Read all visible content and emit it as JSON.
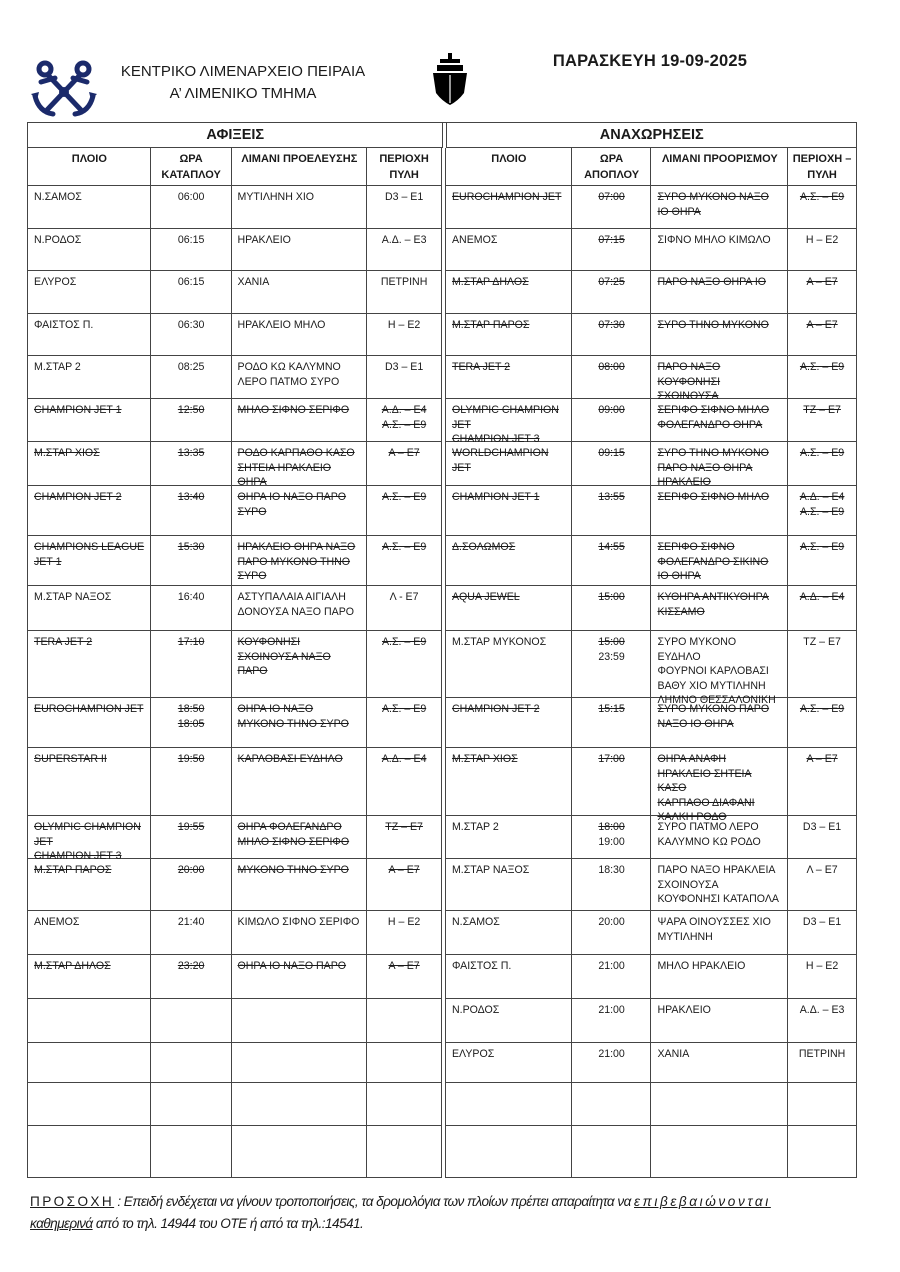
{
  "header": {
    "org_line1": "ΚΕΝΤΡΙΚΟ ΛΙΜΕΝΑΡΧΕΙΟ ΠΕΙΡΑΙΑ",
    "org_line2": "Α’ ΛΙΜΕΝΙΚΟ ΤΜΗΜΑ",
    "date": "ΠΑΡΑΣΚΕΥΗ  19-09-2025",
    "logo_icon": "crossed-anchors-icon",
    "ship_icon": "ship-bow-icon",
    "logo_color": "#1b2a6b"
  },
  "arrivals": {
    "title": "ΑΦΙΞΕΙΣ",
    "columns": [
      "ΠΛΟΙΟ",
      "ΩΡΑ ΚΑΤΑΠΛΟΥ",
      "ΛΙΜΑΝΙ ΠΡΟΕΛΕΥΣΗΣ",
      "ΠΕΡΙΟΧΗ ΠΥΛΗ"
    ],
    "rows": [
      {
        "ship": [
          "Ν.ΣΑΜΟΣ"
        ],
        "time": [
          "06:00"
        ],
        "port": [
          "ΜΥΤΙΛΗΝΗ ΧΙΟ"
        ],
        "gate": [
          "D3 – E1"
        ],
        "cancelled": false
      },
      {
        "ship": [
          "Ν.ΡΟΔΟΣ"
        ],
        "time": [
          "06:15"
        ],
        "port": [
          "ΗΡΑΚΛΕΙΟ"
        ],
        "gate": [
          "Α.Δ. – Ε3"
        ],
        "cancelled": false
      },
      {
        "ship": [
          "ΕΛΥΡΟΣ"
        ],
        "time": [
          "06:15"
        ],
        "port": [
          "ΧΑΝΙΑ"
        ],
        "gate": [
          "ΠΕΤΡΙΝΗ"
        ],
        "cancelled": false
      },
      {
        "ship": [
          "ΦΑΙΣΤΟΣ Π."
        ],
        "time": [
          "06:30"
        ],
        "port": [
          "ΗΡΑΚΛΕΙΟ ΜΗΛΟ"
        ],
        "gate": [
          "Η – Ε2"
        ],
        "cancelled": false
      },
      {
        "ship": [
          "Μ.ΣΤΑΡ 2"
        ],
        "time": [
          "08:25"
        ],
        "port": [
          "ΡΟΔΟ ΚΩ ΚΑΛΥΜΝΟ",
          "ΛΕΡΟ ΠΑΤΜΟ ΣΥΡΟ"
        ],
        "gate": [
          "D3 – E1"
        ],
        "cancelled": false
      },
      {
        "ship": [
          "CHAMPION JET 1"
        ],
        "time": [
          "12:50"
        ],
        "port": [
          "ΜΗΛΟ ΣΙΦΝΟ ΣΕΡΙΦΟ"
        ],
        "gate": [
          "Α.Δ. – Ε4",
          "Α.Σ. – Ε9"
        ],
        "cancelled": true
      },
      {
        "ship": [
          "Μ.ΣΤΑΡ ΧΙΟΣ"
        ],
        "time": [
          "13:35"
        ],
        "port": [
          "ΡΟΔΟ ΚΑΡΠΑΘΟ ΚΑΣΟ",
          "ΣΗΤΕΙΑ ΗΡΑΚΛΕΙΟ",
          "ΘΗΡΑ"
        ],
        "gate": [
          "Α – Ε7"
        ],
        "cancelled": true
      },
      {
        "ship": [
          "CHAMPION JET 2"
        ],
        "time": [
          "13:40"
        ],
        "port": [
          "ΘΗΡΑ ΙΟ ΝΑΞΟ ΠΑΡΟ",
          "ΣΥΡΟ"
        ],
        "gate": [
          "Α.Σ. – Ε9"
        ],
        "cancelled": true
      },
      {
        "ship": [
          "CHAMPIONS LEAGUE",
          "JET 1"
        ],
        "time": [
          "15:30"
        ],
        "port": [
          "ΗΡΑΚΛΕΙΟ ΘΗΡΑ ΝΑΞΟ",
          "ΠΑΡΟ ΜΥΚΟΝΟ ΤΗΝΟ",
          "ΣΥΡΟ"
        ],
        "gate": [
          "Α.Σ. – Ε9"
        ],
        "cancelled": true
      },
      {
        "ship": [
          "Μ.ΣΤΑΡ ΝΑΞΟΣ"
        ],
        "time": [
          "16:40"
        ],
        "port": [
          "ΑΣΤΥΠΑΛΑΙΑ ΑΙΓΙΑΛΗ",
          "ΔΟΝΟΥΣΑ ΝΑΞΟ ΠΑΡΟ"
        ],
        "gate": [
          "Λ  - Ε7"
        ],
        "cancelled": false
      },
      {
        "ship": [
          "TERA JET 2"
        ],
        "time": [
          "17:10"
        ],
        "port": [
          "ΚΟΥΦΟΝΗΣΙ",
          "ΣΧΟΙΝΟΥΣΑ ΝΑΞΟ",
          "ΠΑΡΟ"
        ],
        "gate": [
          "Α.Σ. – Ε9"
        ],
        "cancelled": true
      },
      {
        "ship": [
          "EUROCHAMPION JET"
        ],
        "time": [
          "18:50",
          "18:05"
        ],
        "port": [
          "ΘΗΡΑ ΙΟ ΝΑΞΟ",
          "ΜΥΚΟΝΟ ΤΗΝΟ ΣΥΡΟ"
        ],
        "gate": [
          "Α.Σ. – Ε9"
        ],
        "cancelled": true
      },
      {
        "ship": [
          "SUPERSTAR II"
        ],
        "time": [
          "19:50"
        ],
        "port": [
          "ΚΑΡΛΟΒΑΣΙ ΕΥΔΗΛΟ"
        ],
        "gate": [
          "Α.Δ. – Ε4"
        ],
        "cancelled": true
      },
      {
        "ship": [
          "OLYMPIC CHAMPION",
          "JET",
          "CHAMPION JET 3"
        ],
        "time": [
          "19:55"
        ],
        "port": [
          "ΘΗΡΑ ΦΟΛΕΓΑΝΔΡΟ",
          "ΜΗΛΟ ΣΙΦΝΟ ΣΕΡΙΦΟ"
        ],
        "gate": [
          "ΤΖ – Ε7"
        ],
        "cancelled": true
      },
      {
        "ship": [
          "Μ.ΣΤΑΡ ΠΑΡΟΣ"
        ],
        "time": [
          "20:00"
        ],
        "port": [
          "ΜΥΚΟΝΟ ΤΗΝΟ ΣΥΡΟ"
        ],
        "gate": [
          "Α – Ε7"
        ],
        "cancelled": true
      },
      {
        "ship": [
          "ΑΝΕΜΟΣ"
        ],
        "time": [
          "21:40"
        ],
        "port": [
          "ΚΙΜΩΛΟ ΣΙΦΝΟ ΣΕΡΙΦΟ"
        ],
        "gate": [
          "Η – Ε2"
        ],
        "cancelled": false
      },
      {
        "ship": [
          "Μ.ΣΤΑΡ ΔΗΛΟΣ"
        ],
        "time": [
          "23:20"
        ],
        "port": [
          "ΘΗΡΑ ΙΟ ΝΑΞΟ ΠΑΡΟ"
        ],
        "gate": [
          "Α – Ε7"
        ],
        "cancelled": true
      },
      {
        "ship": [],
        "time": [],
        "port": [],
        "gate": [],
        "cancelled": false
      },
      {
        "ship": [],
        "time": [],
        "port": [],
        "gate": [],
        "cancelled": false
      },
      {
        "ship": [],
        "time": [],
        "port": [],
        "gate": [],
        "cancelled": false
      },
      {
        "ship": [],
        "time": [],
        "port": [],
        "gate": [],
        "cancelled": false
      }
    ]
  },
  "departures": {
    "title": "ΑΝΑΧΩΡΗΣΕΙΣ",
    "columns": [
      "ΠΛΟΙΟ",
      "ΩΡΑ ΑΠΟΠΛΟΥ",
      "ΛΙΜΑΝΙ ΠΡΟΟΡΙΣΜΟΥ",
      "ΠΕΡΙΟΧΗ – ΠΥΛΗ"
    ],
    "rows": [
      {
        "ship": [
          "EUROCHAMPION JET"
        ],
        "time": [
          "07:00"
        ],
        "port": [
          "ΣΥΡΟ ΜΥΚΟΝΟ ΝΑΞΟ",
          "ΙΟ ΘΗΡΑ"
        ],
        "gate": [
          "Α.Σ. – Ε9"
        ],
        "cancelled": true
      },
      {
        "ship": [
          "ΑΝΕΜΟΣ"
        ],
        "time": [
          "07:15"
        ],
        "time_struck": [
          true
        ],
        "port": [
          "ΣΙΦΝΟ ΜΗΛΟ ΚΙΜΩΛΟ"
        ],
        "gate": [
          "Η – Ε2"
        ],
        "cancelled": false
      },
      {
        "ship": [
          "Μ.ΣΤΑΡ ΔΗΛΟΣ"
        ],
        "time": [
          "07:25"
        ],
        "port": [
          "ΠΑΡΟ ΝΑΞΟ ΘΗΡΑ ΙΟ"
        ],
        "gate": [
          "Α – Ε7"
        ],
        "cancelled": true
      },
      {
        "ship": [
          "Μ.ΣΤΑΡ ΠΑΡΟΣ"
        ],
        "time": [
          "07:30"
        ],
        "port": [
          "ΣΥΡΟ ΤΗΝΟ ΜΥΚΟΝΟ"
        ],
        "gate": [
          "Α – Ε7"
        ],
        "cancelled": true
      },
      {
        "ship": [
          "TERA JET 2"
        ],
        "time": [
          "08:00"
        ],
        "port": [
          "ΠΑΡΟ ΝΑΞΟ",
          "ΚΟΥΦΟΝΗΣΙ",
          "ΣΧΟΙΝΟΥΣΑ"
        ],
        "gate": [
          "Α.Σ. – Ε9"
        ],
        "cancelled": true
      },
      {
        "ship": [
          "OLYMPIC CHAMPION",
          "JET",
          "CHAMPION JET 3"
        ],
        "time": [
          "09:00"
        ],
        "port": [
          "ΣΕΡΙΦΟ ΣΙΦΝΟ ΜΗΛΟ",
          "ΦΟΛΕΓΑΝΔΡΟ ΘΗΡΑ"
        ],
        "gate": [
          "ΤΖ – Ε7"
        ],
        "cancelled": true
      },
      {
        "ship": [
          "WORLDCHAMPION",
          "JET"
        ],
        "time": [
          "09:15"
        ],
        "port": [
          "ΣΥΡΟ ΤΗΝΟ ΜΥΚΟΝΟ",
          "ΠΑΡΟ ΝΑΞΟ ΘΗΡΑ",
          "ΗΡΑΚΛΕΙΟ"
        ],
        "gate": [
          "Α.Σ. – Ε9"
        ],
        "cancelled": true
      },
      {
        "ship": [
          "CHAMPION JET 1"
        ],
        "time": [
          "13:55"
        ],
        "port": [
          "ΣΕΡΙΦΟ ΣΙΦΝΟ ΜΗΛΟ"
        ],
        "gate": [
          "Α.Δ. – Ε4",
          "Α.Σ. – Ε9"
        ],
        "cancelled": true
      },
      {
        "ship": [
          "Δ.ΣΟΛΩΜΟΣ"
        ],
        "time": [
          "14:55"
        ],
        "port": [
          "ΣΕΡΙΦΟ ΣΙΦΝΟ",
          "ΦΟΛΕΓΑΝΔΡΟ ΣΙΚΙΝΟ",
          "ΙΟ ΘΗΡΑ"
        ],
        "gate": [
          "Α.Σ. – Ε9"
        ],
        "cancelled": true
      },
      {
        "ship": [
          "AQUA JEWEL"
        ],
        "time": [
          "15:00"
        ],
        "port": [
          "ΚΥΘΗΡΑ ΑΝΤΙΚΥΘΗΡΑ",
          "ΚΙΣΣΑΜΟ"
        ],
        "gate": [
          "Α.Δ. – Ε4"
        ],
        "cancelled": true
      },
      {
        "ship": [
          "Μ.ΣΤΑΡ ΜΥΚΟΝΟΣ"
        ],
        "time": [
          "15:00",
          "23:59"
        ],
        "time_struck": [
          true,
          false
        ],
        "port": [
          "ΣΥΡΟ ΜΥΚΟΝΟ ΕΥΔΗΛΟ",
          "ΦΟΥΡΝΟΙ ΚΑΡΛΟΒΑΣΙ",
          "ΒΑΘΥ ΧΙΟ ΜΥΤΙΛΗΝΗ",
          "ΛΗΜΝΟ ΘΕΣΣΑΛΟΝΙΚΗ"
        ],
        "gate": [
          "ΤΖ – Ε7"
        ],
        "cancelled": false
      },
      {
        "ship": [
          "CHAMPION JET 2"
        ],
        "time": [
          "15:15"
        ],
        "port": [
          "ΣΥΡΟ ΜΥΚΟΝΟ ΠΑΡΟ",
          "ΝΑΞΟ ΙΟ ΘΗΡΑ"
        ],
        "gate": [
          "Α.Σ. – Ε9"
        ],
        "cancelled": true
      },
      {
        "ship": [
          "Μ.ΣΤΑΡ ΧΙΟΣ"
        ],
        "time": [
          "17:00"
        ],
        "port": [
          "ΘΗΡΑ ΑΝΑΦΗ",
          "ΗΡΑΚΛΕΙΟ ΣΗΤΕΙΑ ΚΑΣΟ",
          "ΚΑΡΠΑΘΟ ΔΙΑΦΑΝΙ",
          "ΧΑΛΚΗ ΡΟΔΟ"
        ],
        "gate": [
          "Α – Ε7"
        ],
        "cancelled": true
      },
      {
        "ship": [
          "Μ.ΣΤΑΡ 2"
        ],
        "time": [
          "18:00",
          "19:00"
        ],
        "time_struck": [
          true,
          false
        ],
        "port": [
          "ΣΥΡΟ ΠΑΤΜΟ ΛΕΡΟ",
          "ΚΑΛΥΜΝΟ ΚΩ ΡΟΔΟ"
        ],
        "gate": [
          "D3 – E1"
        ],
        "cancelled": false
      },
      {
        "ship": [
          "Μ.ΣΤΑΡ ΝΑΞΟΣ"
        ],
        "time": [
          "18:30"
        ],
        "port": [
          "ΠΑΡΟ ΝΑΞΟ ΗΡΑΚΛΕΙΑ",
          "ΣΧΟΙΝΟΥΣΑ",
          "ΚΟΥΦΟΝΗΣΙ ΚΑΤΑΠΟΛΑ"
        ],
        "gate": [
          "Λ – Ε7"
        ],
        "cancelled": false
      },
      {
        "ship": [
          "Ν.ΣΑΜΟΣ"
        ],
        "time": [
          "20:00"
        ],
        "port": [
          "ΨΑΡΑ ΟΙΝΟΥΣΣΕΣ ΧΙΟ",
          "ΜΥΤΙΛΗΝΗ"
        ],
        "gate": [
          "D3 – E1"
        ],
        "cancelled": false
      },
      {
        "ship": [
          "ΦΑΙΣΤΟΣ Π."
        ],
        "time": [
          "21:00"
        ],
        "port": [
          "ΜΗΛΟ ΗΡΑΚΛΕΙΟ"
        ],
        "gate": [
          "Η – Ε2"
        ],
        "cancelled": false
      },
      {
        "ship": [
          "Ν.ΡΟΔΟΣ"
        ],
        "time": [
          "21:00"
        ],
        "port": [
          "ΗΡΑΚΛΕΙΟ"
        ],
        "gate": [
          "Α.Δ. – Ε3"
        ],
        "cancelled": false
      },
      {
        "ship": [
          "ΕΛΥΡΟΣ"
        ],
        "time": [
          "21:00"
        ],
        "port": [
          "ΧΑΝΙΑ"
        ],
        "gate": [
          "ΠΕΤΡΙΝΗ"
        ],
        "cancelled": false
      },
      {
        "ship": [],
        "time": [],
        "port": [],
        "gate": [],
        "cancelled": false
      },
      {
        "ship": [],
        "time": [],
        "port": [],
        "gate": [],
        "cancelled": false
      }
    ]
  },
  "footer": {
    "warning": "ΠΡΟΣΟΧΗ",
    "text1": " : Επειδή ενδέχεται να γίνουν τροποποιήσεις, τα δρομολόγια των πλοίων πρέπει απαραίτητα να ",
    "emphasis1": "επιβεβαιώνονται",
    "emphasis2": "καθημερινά",
    "text2": "  από το τηλ. 14944 του ΟΤΕ ή από τα τηλ.:14541."
  }
}
